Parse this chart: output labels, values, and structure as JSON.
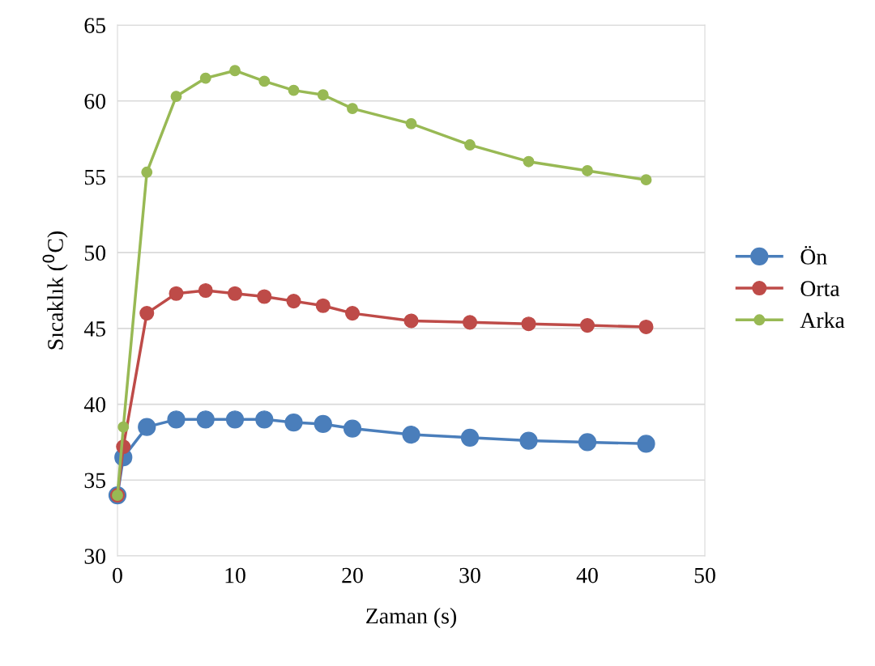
{
  "chart_data": {
    "type": "line",
    "xlabel": "Zaman (s)",
    "ylabel": "Sıcaklık ($^{0}$C)",
    "x": [
      0,
      0.5,
      2.5,
      5,
      7.5,
      10,
      12.5,
      15,
      17.5,
      20,
      25,
      30,
      35,
      40,
      45
    ],
    "series": [
      {
        "name": "Ön",
        "color": "#4a7ebb",
        "values": [
          34,
          36.5,
          38.5,
          39.0,
          39.0,
          39.0,
          39.0,
          38.8,
          38.7,
          38.4,
          38.0,
          37.8,
          37.6,
          37.5,
          37.4
        ]
      },
      {
        "name": "Orta",
        "color": "#be4b48",
        "values": [
          34,
          37.2,
          46.0,
          47.3,
          47.5,
          47.3,
          47.1,
          46.8,
          46.5,
          46.0,
          45.5,
          45.4,
          45.3,
          45.2,
          45.1
        ]
      },
      {
        "name": "Arka",
        "color": "#98b954",
        "values": [
          34,
          38.5,
          55.3,
          60.3,
          61.5,
          62.0,
          61.3,
          60.7,
          60.4,
          59.5,
          58.5,
          57.1,
          56.0,
          55.4,
          54.8
        ]
      }
    ],
    "xlim": [
      0,
      50
    ],
    "xticks": [
      0,
      10,
      20,
      30,
      40,
      50
    ],
    "ylim": [
      30,
      65
    ],
    "yticks": [
      30,
      35,
      40,
      45,
      50,
      55,
      60,
      65
    ],
    "grid": "y",
    "legend": "right",
    "marker": "circle",
    "line_style": "solid"
  }
}
